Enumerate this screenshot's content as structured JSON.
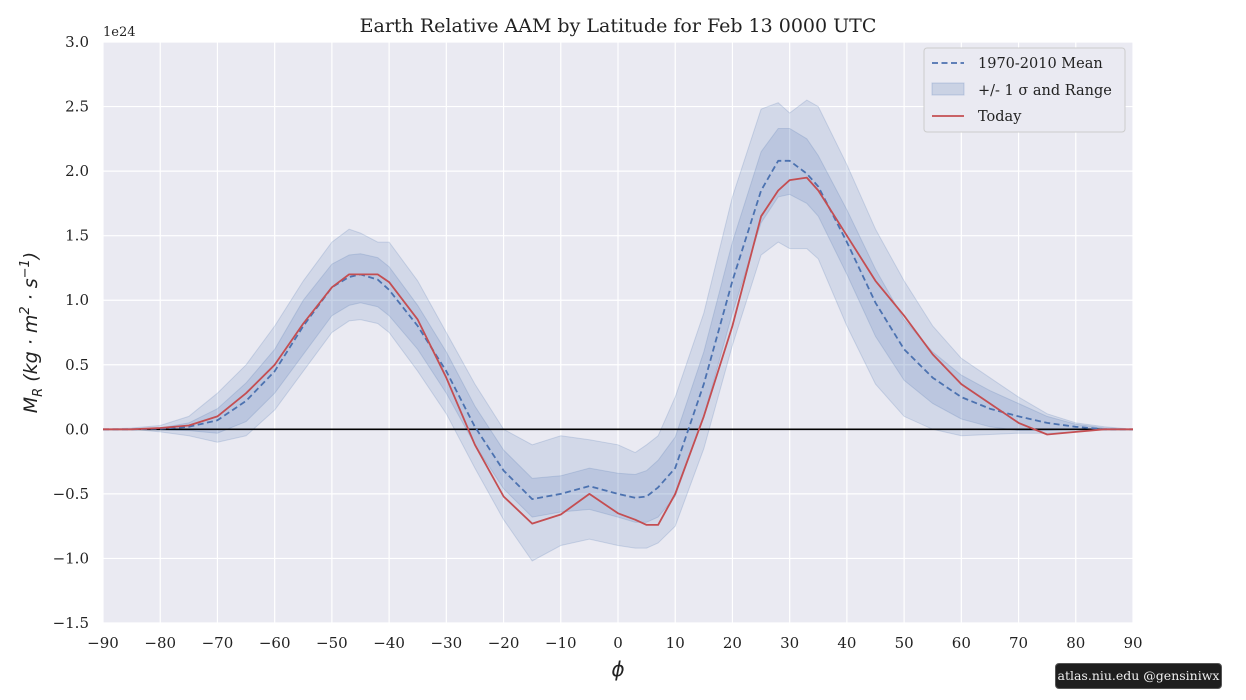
{
  "chart_data": {
    "type": "line",
    "title": "Earth Relative AAM by Latitude for Feb 13 0000 UTC",
    "xlabel": "ϕ",
    "ylabel": "M_R (kg·m²·s⁻¹)",
    "ylabel_parts": {
      "main": "M",
      "sub": "R",
      "unit": "(kg · m",
      "exp2": "2",
      "mid": " · s",
      "exp_neg": "−1",
      "close": ")"
    },
    "offset_text": "1e24",
    "xlim": [
      -90,
      90
    ],
    "ylim": [
      -1.5,
      3.0
    ],
    "scale": 1e+24,
    "x_ticks": [
      -90,
      -80,
      -70,
      -60,
      -50,
      -40,
      -30,
      -20,
      -10,
      0,
      10,
      20,
      30,
      40,
      50,
      60,
      70,
      80,
      90
    ],
    "x_tick_labels": [
      "−90",
      "−80",
      "−70",
      "−60",
      "−50",
      "−40",
      "−30",
      "−20",
      "−10",
      "0",
      "10",
      "20",
      "30",
      "40",
      "50",
      "60",
      "70",
      "80",
      "90"
    ],
    "y_ticks": [
      -1.5,
      -1.0,
      -0.5,
      0.0,
      0.5,
      1.0,
      1.5,
      2.0,
      2.5,
      3.0
    ],
    "y_tick_labels": [
      "−1.5",
      "−1.0",
      "−0.5",
      "0.0",
      "0.5",
      "1.0",
      "1.5",
      "2.0",
      "2.5",
      "3.0"
    ],
    "grid": true,
    "legend_position": "top-right",
    "legend": [
      {
        "label": "1970-2010 Mean",
        "style": "dashed",
        "color": "#4c72b0"
      },
      {
        "label": "+/- 1 σ and Range",
        "style": "band",
        "color": "#4c72b0"
      },
      {
        "label": "Today",
        "style": "solid",
        "color": "#c44e52"
      }
    ],
    "x": [
      -90,
      -85,
      -80,
      -75,
      -70,
      -65,
      -60,
      -55,
      -50,
      -47,
      -45,
      -42,
      -40,
      -35,
      -30,
      -25,
      -20,
      -15,
      -10,
      -5,
      0,
      3,
      5,
      7,
      10,
      15,
      20,
      25,
      28,
      30,
      33,
      35,
      40,
      45,
      50,
      55,
      60,
      65,
      70,
      75,
      80,
      85,
      90
    ],
    "series": [
      {
        "name": "1970-2010 Mean",
        "values": [
          0,
          0,
          0.005,
          0.02,
          0.07,
          0.22,
          0.45,
          0.8,
          1.1,
          1.18,
          1.2,
          1.16,
          1.08,
          0.8,
          0.45,
          0.02,
          -0.32,
          -0.54,
          -0.5,
          -0.44,
          -0.5,
          -0.53,
          -0.52,
          -0.45,
          -0.3,
          0.35,
          1.15,
          1.85,
          2.08,
          2.08,
          1.98,
          1.88,
          1.45,
          0.98,
          0.62,
          0.4,
          0.25,
          0.16,
          0.1,
          0.05,
          0.02,
          0,
          0
        ]
      },
      {
        "name": "Today",
        "values": [
          0,
          0,
          0.01,
          0.03,
          0.1,
          0.28,
          0.5,
          0.82,
          1.1,
          1.2,
          1.2,
          1.2,
          1.14,
          0.85,
          0.4,
          -0.12,
          -0.52,
          -0.73,
          -0.66,
          -0.5,
          -0.65,
          -0.7,
          -0.74,
          -0.74,
          -0.5,
          0.1,
          0.8,
          1.65,
          1.85,
          1.93,
          1.95,
          1.85,
          1.5,
          1.15,
          0.88,
          0.58,
          0.35,
          0.2,
          0.05,
          -0.04,
          -0.02,
          0,
          0
        ]
      },
      {
        "name": "+/- 1 σ lower",
        "values": [
          0,
          0,
          -0.005,
          -0.01,
          -0.03,
          0.06,
          0.28,
          0.58,
          0.88,
          0.96,
          0.98,
          0.95,
          0.88,
          0.62,
          0.28,
          -0.12,
          -0.46,
          -0.68,
          -0.64,
          -0.62,
          -0.68,
          -0.72,
          -0.72,
          -0.68,
          -0.52,
          0.1,
          0.9,
          1.6,
          1.8,
          1.82,
          1.75,
          1.65,
          1.2,
          0.72,
          0.38,
          0.2,
          0.08,
          0.02,
          -0.01,
          -0.01,
          0,
          0,
          0
        ]
      },
      {
        "name": "+/- 1 σ upper",
        "values": [
          0,
          0,
          0.01,
          0.05,
          0.16,
          0.36,
          0.62,
          1.0,
          1.28,
          1.35,
          1.36,
          1.33,
          1.26,
          0.96,
          0.6,
          0.18,
          -0.16,
          -0.38,
          -0.36,
          -0.3,
          -0.34,
          -0.35,
          -0.32,
          -0.24,
          -0.06,
          0.6,
          1.45,
          2.15,
          2.33,
          2.33,
          2.25,
          2.12,
          1.7,
          1.24,
          0.85,
          0.6,
          0.42,
          0.3,
          0.2,
          0.1,
          0.04,
          0.01,
          0
        ]
      },
      {
        "name": "Range lower",
        "values": [
          0,
          0,
          -0.02,
          -0.05,
          -0.1,
          -0.05,
          0.15,
          0.45,
          0.75,
          0.84,
          0.85,
          0.82,
          0.75,
          0.45,
          0.12,
          -0.3,
          -0.7,
          -1.02,
          -0.9,
          -0.85,
          -0.9,
          -0.92,
          -0.92,
          -0.88,
          -0.75,
          -0.15,
          0.65,
          1.35,
          1.45,
          1.4,
          1.4,
          1.32,
          0.8,
          0.35,
          0.1,
          0.0,
          -0.05,
          -0.04,
          -0.03,
          -0.03,
          -0.02,
          0,
          0
        ]
      },
      {
        "name": "Range upper",
        "values": [
          0,
          0.01,
          0.03,
          0.1,
          0.28,
          0.5,
          0.8,
          1.15,
          1.45,
          1.55,
          1.52,
          1.45,
          1.45,
          1.15,
          0.75,
          0.35,
          0.0,
          -0.12,
          -0.05,
          -0.08,
          -0.12,
          -0.18,
          -0.12,
          -0.05,
          0.25,
          0.9,
          1.8,
          2.48,
          2.53,
          2.45,
          2.55,
          2.5,
          2.05,
          1.55,
          1.15,
          0.8,
          0.55,
          0.4,
          0.25,
          0.12,
          0.05,
          0.02,
          0
        ]
      }
    ],
    "colors": {
      "mean": "#4c72b0",
      "band": "#4c72b0",
      "today": "#c44e52",
      "zero_line": "#000000",
      "plot_bg": "#eaeaf2",
      "grid": "#ffffff"
    }
  },
  "watermark": "atlas.niu.edu  @gensiniwx"
}
